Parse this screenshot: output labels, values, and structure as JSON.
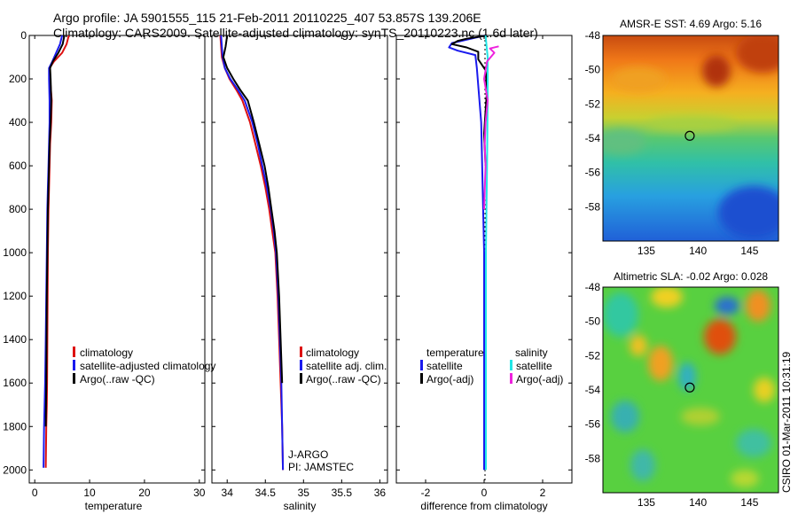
{
  "header": {
    "line1": "Argo profile: JA 5901555_115 21-Feb-2011 20110225_407 53.857S 139.206E",
    "line2": "Climatology: CARS2009. Satellite-adjusted climatology: synTS_20110223.nc (1.6d later)"
  },
  "side_credit": "CSIRO 01-Mar-2011 10:31:19",
  "colors": {
    "red": "#dd1111",
    "blue": "#1a1aee",
    "black": "#000000",
    "cyan": "#22e6e6",
    "magenta": "#ee22dd"
  },
  "chart_data": [
    {
      "type": "line",
      "name": "temperature-profile",
      "xlabel": "temperature",
      "ylabel": "",
      "xlim": [
        -1,
        31
      ],
      "ylim": [
        2060,
        0
      ],
      "xticks": [
        0,
        10,
        20,
        30
      ],
      "yticks": [
        0,
        200,
        400,
        600,
        800,
        1000,
        1200,
        1400,
        1600,
        1800,
        2000
      ],
      "series": [
        {
          "name": "climatology",
          "color": "red",
          "x": [
            6.2,
            5.8,
            5.0,
            3.5,
            2.7,
            2.8,
            3.1,
            3.0,
            2.8,
            2.7,
            2.6,
            2.5,
            2.4,
            2.35,
            2.3,
            2.25,
            2.2,
            2.1,
            2.0
          ],
          "y": [
            0,
            40,
            80,
            120,
            150,
            200,
            300,
            400,
            500,
            600,
            700,
            800,
            1000,
            1200,
            1400,
            1600,
            1700,
            1800,
            1990
          ]
        },
        {
          "name": "satellite-adjusted climatology",
          "color": "blue",
          "x": [
            5.0,
            4.6,
            3.9,
            3.2,
            2.6,
            2.6,
            2.7,
            2.7,
            2.6,
            2.5,
            2.4,
            2.3,
            2.2,
            2.1,
            2.0,
            1.9,
            1.8,
            1.7,
            1.6
          ],
          "y": [
            0,
            40,
            80,
            120,
            150,
            200,
            300,
            400,
            500,
            600,
            700,
            800,
            1000,
            1200,
            1400,
            1600,
            1700,
            1800,
            1990
          ]
        },
        {
          "name": "Argo(..raw -QC)",
          "color": "black",
          "x": [
            5.4,
            5.1,
            4.3,
            3.3,
            2.8,
            2.9,
            3.0,
            2.9,
            2.7,
            2.6,
            2.5,
            2.4,
            2.3,
            2.2,
            2.15,
            2.1,
            2.0
          ],
          "y": [
            0,
            40,
            80,
            120,
            150,
            200,
            300,
            400,
            500,
            600,
            700,
            800,
            1000,
            1200,
            1400,
            1600,
            1800
          ]
        }
      ],
      "legend": [
        "climatology",
        "satellite-adjusted climatology",
        "Argo(..raw -QC)"
      ]
    },
    {
      "type": "line",
      "name": "salinity-profile",
      "xlabel": "salinity",
      "xlim": [
        33.8,
        36.1
      ],
      "ylim": [
        2060,
        0
      ],
      "xticks": [
        34,
        34.5,
        35,
        35.5,
        36
      ],
      "xticklabels": [
        "34",
        "34.5",
        "35",
        "35.5",
        "36"
      ],
      "series": [
        {
          "name": "climatology",
          "color": "red",
          "x": [
            33.91,
            33.93,
            33.97,
            34.03,
            34.12,
            34.2,
            34.3,
            34.37,
            34.44,
            34.5,
            34.55,
            34.59,
            34.63,
            34.66,
            34.68,
            34.7,
            34.72,
            34.73
          ],
          "y": [
            0,
            100,
            150,
            200,
            250,
            300,
            400,
            500,
            600,
            700,
            800,
            900,
            1000,
            1200,
            1400,
            1600,
            1800,
            2000
          ]
        },
        {
          "name": "satellite adj. clim.",
          "color": "blue",
          "x": [
            33.92,
            33.94,
            33.97,
            34.04,
            34.14,
            34.23,
            34.33,
            34.4,
            34.46,
            34.52,
            34.57,
            34.61,
            34.64,
            34.67,
            34.69,
            34.71,
            34.72,
            34.73
          ],
          "y": [
            0,
            100,
            150,
            200,
            250,
            300,
            400,
            500,
            600,
            700,
            800,
            900,
            1000,
            1200,
            1400,
            1600,
            1800,
            2000
          ]
        },
        {
          "name": "Argo(..raw -QC)",
          "color": "black",
          "x": [
            34.0,
            33.98,
            33.95,
            34.0,
            34.08,
            34.17,
            34.27,
            34.35,
            34.42,
            34.49,
            34.54,
            34.58,
            34.62,
            34.65,
            34.68,
            34.7,
            34.72
          ],
          "y": [
            0,
            50,
            100,
            150,
            200,
            250,
            300,
            400,
            500,
            600,
            700,
            800,
            900,
            1000,
            1200,
            1400,
            1600
          ]
        }
      ],
      "legend": [
        "climatology",
        "satellite adj. clim.",
        "Argo(..raw -QC)"
      ],
      "annotation": [
        "J-ARGO",
        "PI: JAMSTEC"
      ]
    },
    {
      "type": "line",
      "name": "difference-profile",
      "xlabel": "difference from climatology",
      "xlim": [
        -3,
        3
      ],
      "ylim": [
        2060,
        0
      ],
      "xticks": [
        -2,
        0,
        2
      ],
      "xticklabels": [
        "-2",
        "0",
        "2"
      ],
      "series": [
        {
          "name": "temperature satellite",
          "color": "blue",
          "x": [
            0.05,
            -0.3,
            -1.1,
            -1.2,
            -0.9,
            -0.3,
            -0.25,
            -0.1,
            0.0,
            0.0
          ],
          "y": [
            0,
            10,
            35,
            55,
            70,
            90,
            150,
            400,
            1000,
            2000
          ]
        },
        {
          "name": "temperature Argo(-adj)",
          "color": "black",
          "x": [
            0.1,
            -0.6,
            -0.9,
            -1.1,
            -0.6,
            -0.2,
            -0.2,
            0.05,
            0.1,
            0.05,
            0.0,
            0.05
          ],
          "y": [
            0,
            15,
            25,
            40,
            55,
            75,
            110,
            160,
            250,
            350,
            450,
            600
          ]
        },
        {
          "name": "salinity satellite",
          "color": "cyan",
          "x": [
            0.05,
            0.12,
            0.12,
            0.1,
            0.06,
            0.06,
            0.06
          ],
          "y": [
            0,
            100,
            300,
            600,
            1000,
            1500,
            2000
          ]
        },
        {
          "name": "salinity Argo(-adj)",
          "color": "magenta",
          "x": [
            0.5,
            0.2,
            0.35,
            0.1,
            0.0,
            0.12,
            0.05,
            0.02,
            0.05,
            0.0
          ],
          "y": [
            50,
            60,
            80,
            120,
            200,
            300,
            400,
            500,
            600,
            800
          ]
        }
      ],
      "legend_headers": [
        "temperature",
        "salinity"
      ],
      "legend": [
        "satellite",
        "Argo(-adj)",
        "satellite",
        "Argo(-adj)"
      ]
    },
    {
      "type": "heatmap",
      "name": "sst-map",
      "title": "AMSR-E SST: 4.69 Argo: 5.16",
      "xlim": [
        130.8,
        147.8
      ],
      "ylim": [
        -60,
        -48
      ],
      "xticks": [
        135,
        140,
        145
      ],
      "yticks": [
        -48,
        -50,
        -52,
        -54,
        -56,
        -58
      ],
      "marker": {
        "lon": 139.206,
        "lat": -53.857
      }
    },
    {
      "type": "heatmap",
      "name": "sla-map",
      "title": "Altimetric SLA: -0.02 Argo: 0.028",
      "xlim": [
        130.8,
        147.8
      ],
      "ylim": [
        -60,
        -48
      ],
      "xticks": [
        135,
        140,
        145
      ],
      "yticks": [
        -48,
        -50,
        -52,
        -54,
        -56,
        -58
      ],
      "marker": {
        "lon": 139.206,
        "lat": -53.857
      }
    }
  ]
}
